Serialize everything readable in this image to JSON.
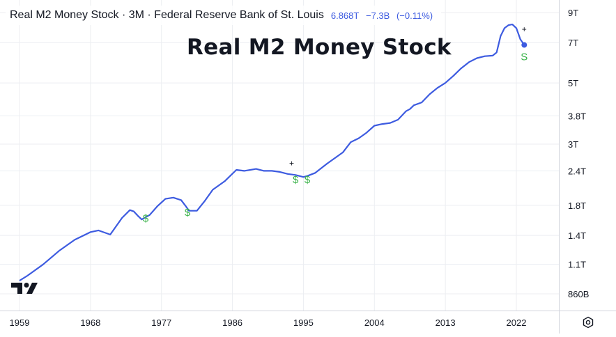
{
  "header": {
    "title": "Real M2 Money Stock · 3M · Federal Reserve Bank of St. Louis",
    "last_value": "6.868T",
    "change": "−7.3B",
    "change_pct": "(−0.11%)",
    "accent_color": "#3d5be0"
  },
  "overlay_title": "Real M2 Money Stock",
  "logo": "tradingview-logo-icon",
  "settings_icon": "gear-icon",
  "chart_data": {
    "type": "line",
    "title": "Real M2 Money Stock",
    "y_scale": "log",
    "y_unit": "T",
    "y_ticks": [
      "9T",
      "7T",
      "5T",
      "3.8T",
      "3T",
      "2.4T",
      "1.8T",
      "1.4T",
      "1.1T",
      "860B"
    ],
    "x_ticks": [
      "1959",
      "1968",
      "1977",
      "1986",
      "1995",
      "2004",
      "2013",
      "2022"
    ],
    "grid": true,
    "series": [
      {
        "color": "#3d5be0",
        "x": [
          1959,
          1960,
          1962,
          1964,
          1966,
          1968,
          1969,
          1970.5,
          1972,
          1973,
          1973.5,
          1974,
          1974.5,
          1975.5,
          1976.5,
          1977.5,
          1978.5,
          1979.5,
          1980,
          1980.5,
          1981.5,
          1982.5,
          1983.5,
          1985,
          1986.5,
          1987.5,
          1989,
          1990,
          1991,
          1992,
          1993,
          1994,
          1995,
          1995.5,
          1996.5,
          1998,
          2000,
          2001,
          2002,
          2003,
          2004,
          2005,
          2006,
          2007,
          2008,
          2008.5,
          2009,
          2010,
          2011,
          2012,
          2013,
          2014,
          2015,
          2016,
          2017,
          2018,
          2019,
          2019.5,
          2020,
          2020.5,
          2021,
          2021.5,
          2022,
          2022.5,
          2023
        ],
        "y": [
          0.96,
          1.0,
          1.1,
          1.23,
          1.35,
          1.44,
          1.46,
          1.41,
          1.62,
          1.73,
          1.71,
          1.65,
          1.6,
          1.66,
          1.79,
          1.9,
          1.92,
          1.88,
          1.8,
          1.72,
          1.72,
          1.87,
          2.05,
          2.2,
          2.42,
          2.4,
          2.44,
          2.4,
          2.4,
          2.38,
          2.34,
          2.32,
          2.28,
          2.3,
          2.36,
          2.55,
          2.8,
          3.05,
          3.15,
          3.3,
          3.5,
          3.55,
          3.58,
          3.68,
          3.95,
          4.02,
          4.15,
          4.25,
          4.55,
          4.8,
          5.0,
          5.3,
          5.65,
          5.95,
          6.15,
          6.25,
          6.28,
          6.45,
          7.4,
          7.9,
          8.1,
          8.15,
          7.9,
          7.2,
          6.868
        ]
      }
    ],
    "markers": [
      {
        "label": "$",
        "x": 1975,
        "y": 1.57
      },
      {
        "label": "$",
        "x": 1980.3,
        "y": 1.65
      },
      {
        "label": "$",
        "x": 1994,
        "y": 2.17
      },
      {
        "label": "$",
        "x": 1995.5,
        "y": 2.17
      },
      {
        "label": "S",
        "x": 2023,
        "y": 6.05
      },
      {
        "label": "+",
        "x": 1993.5,
        "y": 2.5
      },
      {
        "label": "+",
        "x": 2023,
        "y": 7.65
      }
    ]
  }
}
